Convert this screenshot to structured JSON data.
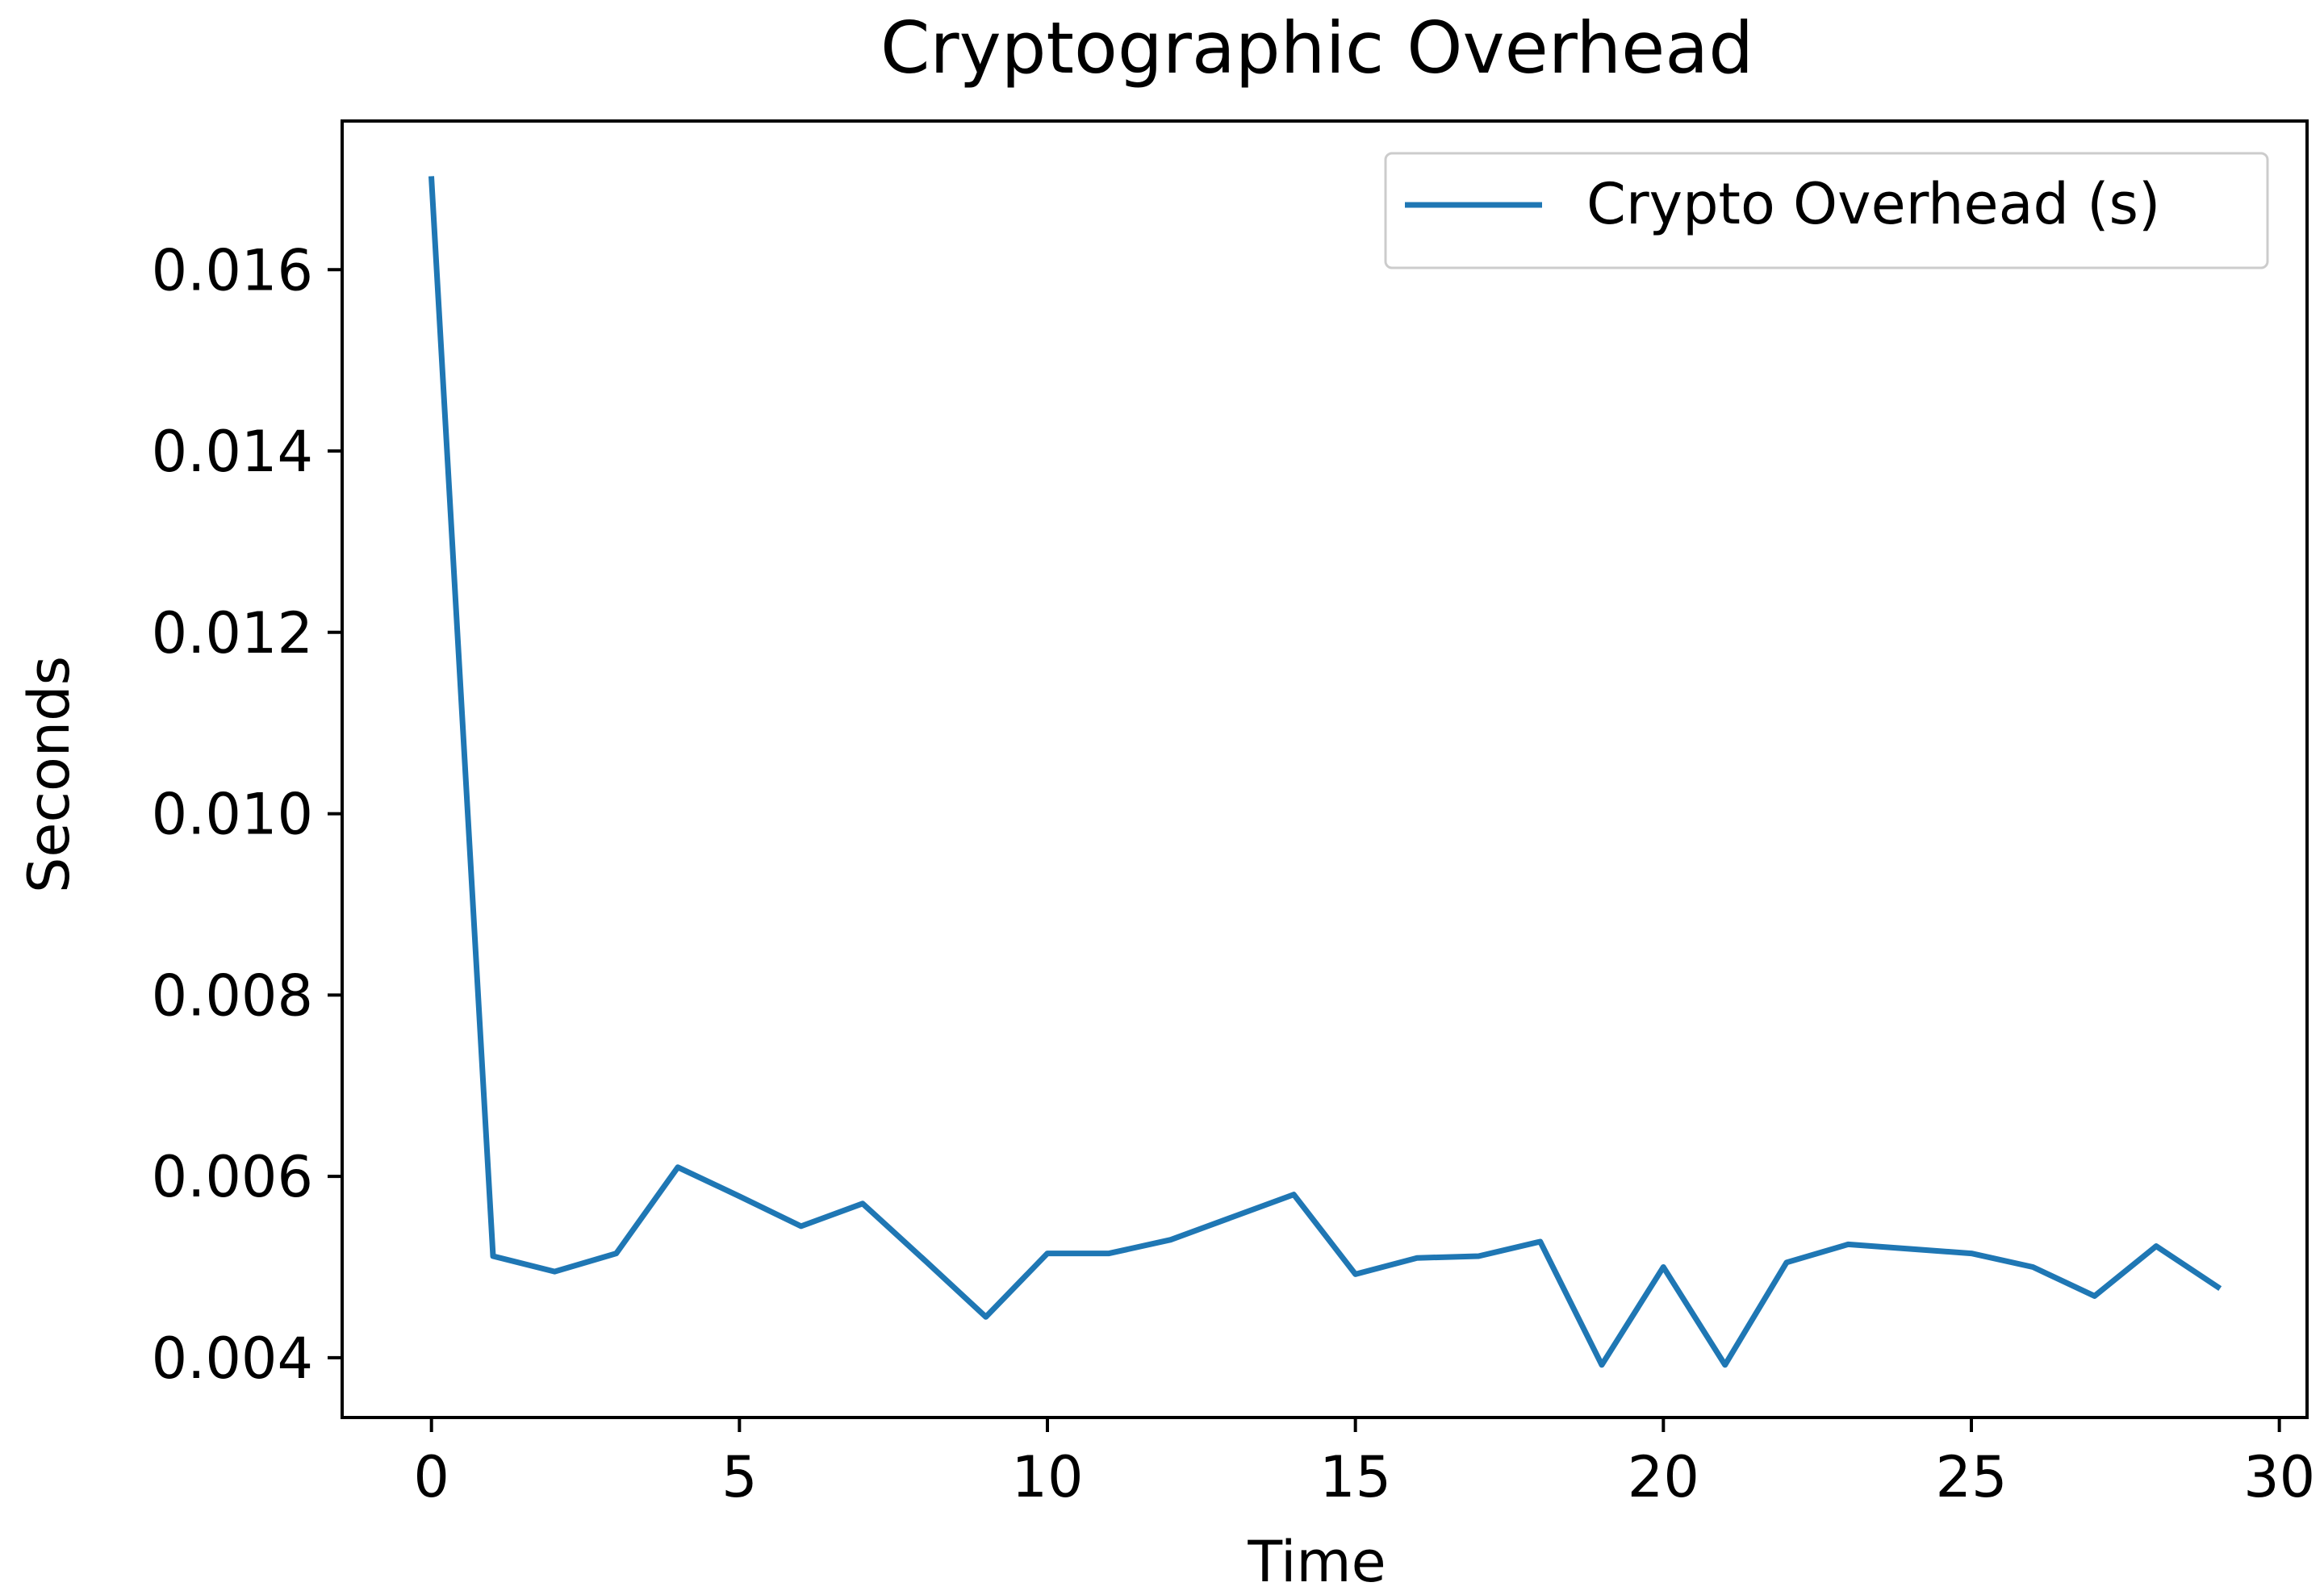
{
  "chart_data": {
    "type": "line",
    "title": "Cryptographic Overhead",
    "xlabel": "Time",
    "ylabel": "Seconds",
    "xlim": [
      -1.45,
      30.45
    ],
    "ylim": [
      0.00334,
      0.01764
    ],
    "x_ticks": [
      0,
      5,
      10,
      15,
      20,
      25,
      30
    ],
    "x_tick_labels": [
      "0",
      "5",
      "10",
      "15",
      "20",
      "25",
      "30"
    ],
    "y_ticks": [
      0.004,
      0.006,
      0.008,
      0.01,
      0.012,
      0.014,
      0.016
    ],
    "y_tick_labels": [
      "0.004",
      "0.006",
      "0.008",
      "0.010",
      "0.012",
      "0.014",
      "0.016"
    ],
    "grid": false,
    "legend_position": "top-right",
    "series": [
      {
        "name": "Crypto Overhead (s)",
        "color": "#1f77b4",
        "x": [
          0,
          1,
          2,
          3,
          4,
          5,
          6,
          7,
          8,
          9,
          10,
          11,
          12,
          13,
          14,
          15,
          16,
          17,
          18,
          19,
          20,
          21,
          22,
          23,
          24,
          25,
          26,
          27,
          28,
          29
        ],
        "values": [
          0.017,
          0.00512,
          0.00495,
          0.00515,
          0.0061,
          0.00578,
          0.00545,
          0.0057,
          0.00508,
          0.00445,
          0.00515,
          0.00515,
          0.0053,
          0.00555,
          0.0058,
          0.00492,
          0.0051,
          0.00512,
          0.00528,
          0.00392,
          0.005,
          0.00392,
          0.00505,
          0.00525,
          0.0052,
          0.00515,
          0.005,
          0.00468,
          0.00523,
          0.00478
        ]
      }
    ]
  }
}
